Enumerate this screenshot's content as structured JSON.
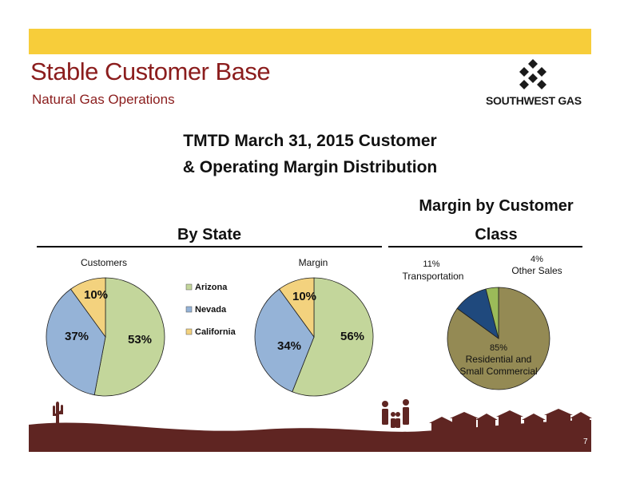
{
  "header": {
    "title": "Stable Customer Base",
    "subtitle": "Natural Gas Operations",
    "logo_text": "SOUTHWEST GAS"
  },
  "main_title": {
    "line1": "TMTD March 31, 2015 Customer",
    "line2": "& Operating Margin Distribution"
  },
  "sections": {
    "by_state": "By State",
    "margin_by_class_line1": "Margin by Customer",
    "margin_by_class_line2": "Class"
  },
  "colors": {
    "band": "#f7cd3a",
    "title": "#8b1d1d",
    "footer": "#5f2522",
    "arizona": "#c3d69b",
    "nevada": "#95b3d7",
    "california": "#f3d27e",
    "residential": "#948a54",
    "transportation": "#1f497d",
    "other_sales": "#9bbb59"
  },
  "chart_data": [
    {
      "type": "pie",
      "title": "Customers",
      "slices": [
        {
          "label": "Arizona",
          "value": 53,
          "display": "53%"
        },
        {
          "label": "Nevada",
          "value": 37,
          "display": "37%"
        },
        {
          "label": "California",
          "value": 10,
          "display": "10%"
        }
      ],
      "legend": [
        "Arizona",
        "Nevada",
        "California"
      ],
      "legend_position": "right"
    },
    {
      "type": "pie",
      "title": "Margin",
      "slices": [
        {
          "label": "Arizona",
          "value": 56,
          "display": "56%"
        },
        {
          "label": "Nevada",
          "value": 34,
          "display": "34%"
        },
        {
          "label": "California",
          "value": 10,
          "display": "10%"
        }
      ]
    },
    {
      "type": "pie",
      "title": "",
      "slices": [
        {
          "label": "Residential and Small Commercial",
          "value": 85,
          "display": "85%",
          "label_lines": [
            "Residential  and",
            "Small Commercial"
          ]
        },
        {
          "label": "Transportation",
          "value": 11,
          "display": "11%",
          "label_lines": [
            "Transportation"
          ]
        },
        {
          "label": "Other Sales",
          "value": 4,
          "display": "4%",
          "label_lines": [
            "Other Sales"
          ]
        }
      ]
    }
  ],
  "footer": {
    "page_number": "7"
  }
}
